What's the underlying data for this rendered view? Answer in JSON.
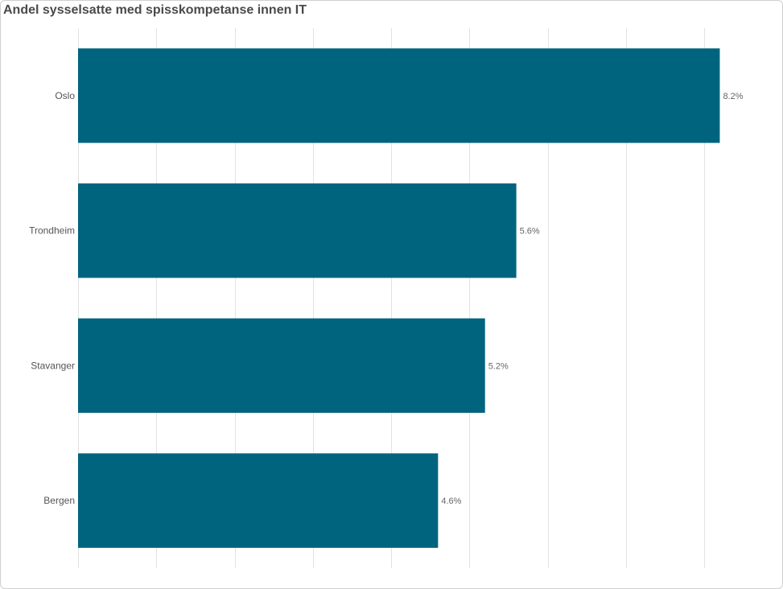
{
  "chart_data": {
    "type": "bar",
    "orientation": "horizontal",
    "title": "Andel sysselsatte med spisskompetanse innen IT",
    "categories": [
      "Oslo",
      "Trondheim",
      "Stavanger",
      "Bergen"
    ],
    "values": [
      8.2,
      5.6,
      5.2,
      4.6
    ],
    "data_labels": [
      "8.2%",
      "5.6%",
      "5.2%",
      "4.6%"
    ],
    "xlim": [
      0,
      8
    ],
    "x_tick_step": 1,
    "grid": true,
    "colors": {
      "bar": "#00647f"
    }
  }
}
